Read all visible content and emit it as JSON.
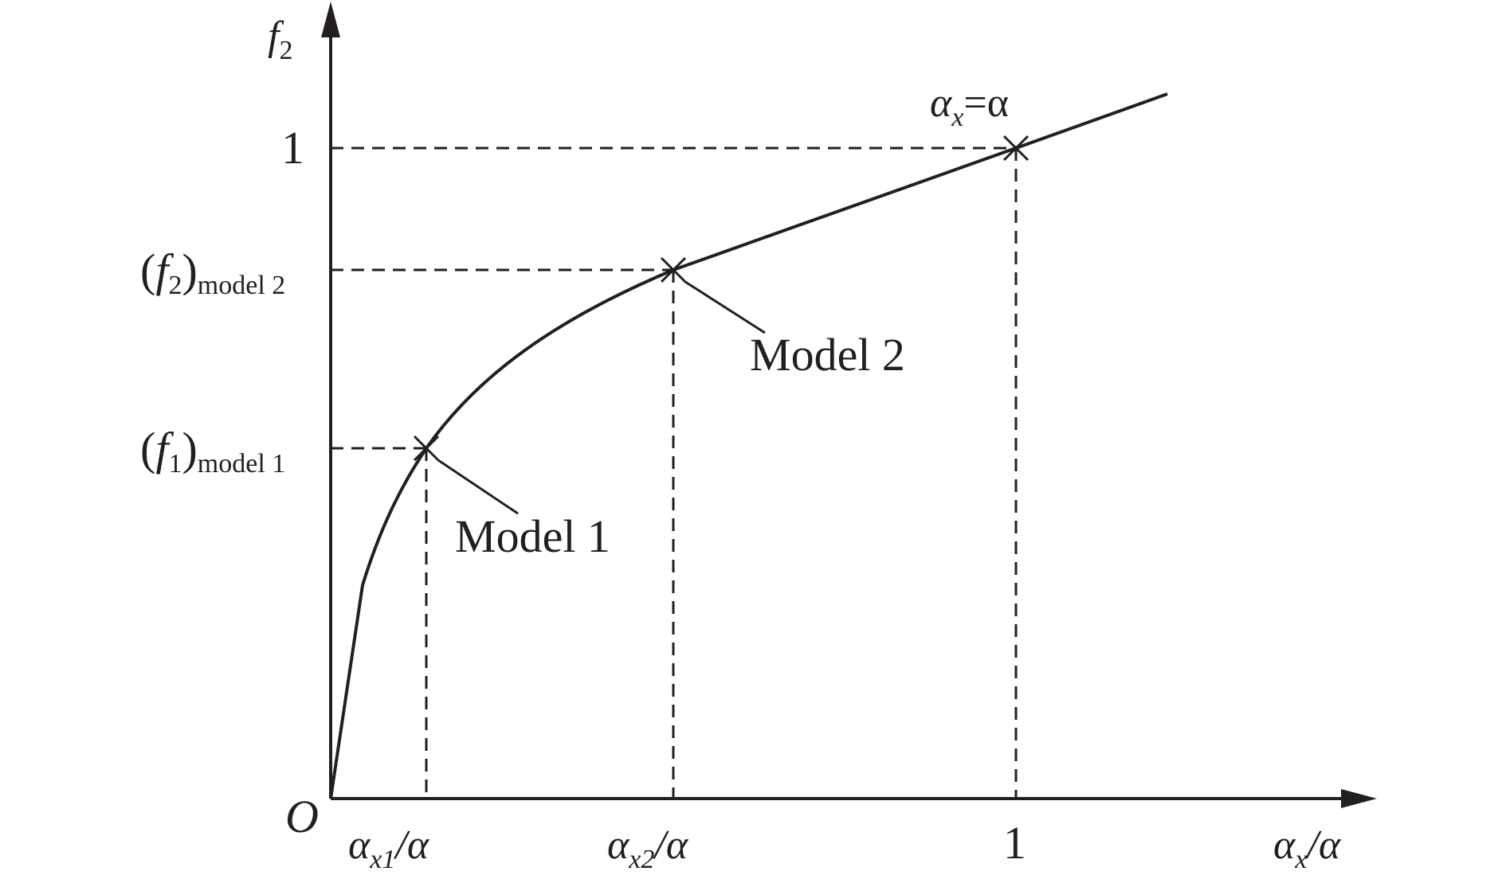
{
  "colors": {
    "ink": "#231f20",
    "background": "#ffffff"
  },
  "axes": {
    "y_label_main": "f",
    "y_label_sub": "2",
    "x_label_main": "α",
    "x_label_sub": "x",
    "x_label_tail": "/α",
    "origin_label": "O"
  },
  "x_ticks": {
    "tick1_main": "α",
    "tick1_sub": "x1",
    "tick1_tail": "/α",
    "tick2_main": "α",
    "tick2_sub": "x2",
    "tick2_tail": "/α",
    "tick3": "1"
  },
  "y_ticks": {
    "tick_one": "1",
    "model2_open": "(",
    "model2_f": "f",
    "model2_fsub": "2",
    "model2_close": ")",
    "model2_sub": "model 2",
    "model1_open": "(",
    "model1_f": "f",
    "model1_fsub": "1",
    "model1_close": ")",
    "model1_sub": "model 1"
  },
  "annotations": {
    "model1": "Model 1",
    "model2": "Model 2",
    "top_main": "α",
    "top_sub": "x",
    "top_eq": "=α"
  }
}
